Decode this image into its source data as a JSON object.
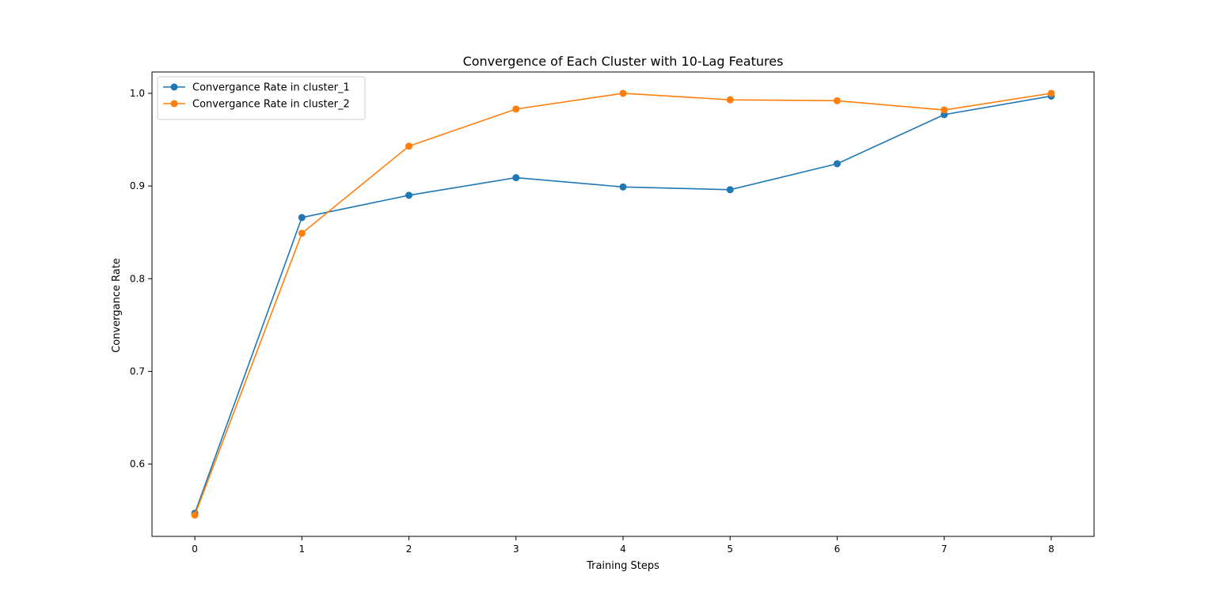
{
  "chart_data": {
    "type": "line",
    "title": "Convergence of Each Cluster with 10-Lag Features",
    "xlabel": "Training Steps",
    "ylabel": "Convergance Rate",
    "x": [
      0,
      1,
      2,
      3,
      4,
      5,
      6,
      7,
      8
    ],
    "xlim": [
      -0.4,
      8.4
    ],
    "ylim": [
      0.522,
      1.023
    ],
    "xticks": [
      "0",
      "1",
      "2",
      "3",
      "4",
      "5",
      "6",
      "7",
      "8"
    ],
    "yticks": [
      "0.6",
      "0.7",
      "0.8",
      "0.9",
      "1.0"
    ],
    "grid": false,
    "legend_position": "upper-left",
    "series": [
      {
        "name": "Convergance Rate in cluster_1",
        "color": "#1f77b4",
        "marker": "circle",
        "values": [
          0.547,
          0.866,
          0.89,
          0.909,
          0.899,
          0.896,
          0.924,
          0.977,
          0.997
        ]
      },
      {
        "name": "Convergance Rate in cluster_2",
        "color": "#ff7f0e",
        "marker": "circle",
        "values": [
          0.545,
          0.849,
          0.943,
          0.983,
          1.0,
          0.993,
          0.992,
          0.982,
          1.0
        ]
      }
    ]
  }
}
